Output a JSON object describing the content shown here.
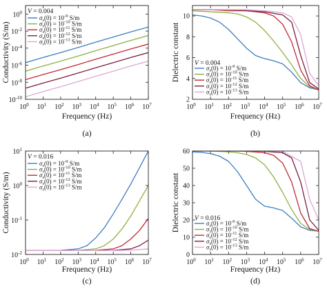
{
  "chart_data": [
    {
      "type": "line",
      "panel_label": "(a)",
      "xlabel": "Frequency (Hz)",
      "ylabel": "Conductivity (S/m)",
      "xscale": "log",
      "yscale": "log",
      "xlim": [
        1,
        10000000
      ],
      "ylim": [
        1e-10,
        10
      ],
      "x_ticks": [
        {
          "value": 1,
          "base": "10",
          "exp": "0"
        },
        {
          "value": 10,
          "base": "10",
          "exp": "1"
        },
        {
          "value": 100,
          "base": "10",
          "exp": "2"
        },
        {
          "value": 1000,
          "base": "10",
          "exp": "3"
        },
        {
          "value": 10000,
          "base": "10",
          "exp": "4"
        },
        {
          "value": 100000,
          "base": "10",
          "exp": "5"
        },
        {
          "value": 1000000,
          "base": "10",
          "exp": "6"
        },
        {
          "value": 10000000,
          "base": "10",
          "exp": "7"
        }
      ],
      "y_ticks": [
        {
          "value": 1e-10,
          "base": "10",
          "exp": "-10"
        },
        {
          "value": 1e-08,
          "base": "10",
          "exp": "-8"
        },
        {
          "value": 1e-06,
          "base": "10",
          "exp": "-6"
        },
        {
          "value": 0.0001,
          "base": "10",
          "exp": "-4"
        },
        {
          "value": 0.01,
          "base": "10",
          "exp": "-2"
        },
        {
          "value": 1,
          "base": "10",
          "exp": "0"
        }
      ],
      "parameter_text": "V = 0.004",
      "legend_position": "top-left",
      "series": [
        {
          "name": "σs(0) = 10⁻⁹ S/m",
          "legend_exp": "-9",
          "color": "#3a7dc0",
          "x": [
            1,
            10,
            100,
            1000,
            10000,
            100000,
            1000000,
            10000000
          ],
          "y": [
            2e-06,
            8e-06,
            3e-05,
            0.00012,
            0.0005,
            0.002,
            0.008,
            0.03
          ]
        },
        {
          "name": "σs(0) = 10⁻¹⁰ S/m",
          "legend_exp": "-10",
          "color": "#8cb040",
          "x": [
            1,
            10,
            100,
            1000,
            10000,
            100000,
            1000000,
            10000000
          ],
          "y": [
            2e-07,
            8e-07,
            3e-06,
            1.2e-05,
            5e-05,
            0.0002,
            0.0008,
            0.003
          ]
        },
        {
          "name": "σs(0) = 10⁻¹¹ S/m",
          "legend_exp": "-11",
          "color": "#c0282e",
          "x": [
            1,
            10,
            100,
            1000,
            10000,
            100000,
            1000000,
            10000000
          ],
          "y": [
            2e-08,
            8e-08,
            3e-07,
            1.2e-06,
            5e-06,
            2e-05,
            8e-05,
            0.0003
          ]
        },
        {
          "name": "σs(0) = 10⁻¹² S/m",
          "legend_exp": "-12",
          "color": "#7a1c3c",
          "x": [
            1,
            10,
            100,
            1000,
            10000,
            100000,
            1000000,
            10000000
          ],
          "y": [
            2e-09,
            8e-09,
            3e-08,
            1.2e-07,
            5e-07,
            2e-06,
            8e-06,
            3e-05
          ]
        },
        {
          "name": "σs(0) = 10⁻¹³ S/m",
          "legend_exp": "-13",
          "color": "#dba8d6",
          "x": [
            1,
            10,
            100,
            1000,
            10000,
            100000,
            1000000,
            10000000
          ],
          "y": [
            2e-10,
            8e-10,
            3e-09,
            1.2e-08,
            5e-08,
            2e-07,
            8e-07,
            3e-06
          ]
        }
      ]
    },
    {
      "type": "line",
      "panel_label": "(b)",
      "xlabel": "Frequency (Hz)",
      "ylabel": "Dielectric constant",
      "xscale": "log",
      "yscale": "linear",
      "xlim": [
        1,
        10000000
      ],
      "ylim": [
        2,
        11
      ],
      "x_ticks": [
        {
          "value": 1,
          "base": "10",
          "exp": "0"
        },
        {
          "value": 10,
          "base": "10",
          "exp": "1"
        },
        {
          "value": 100,
          "base": "10",
          "exp": "2"
        },
        {
          "value": 1000,
          "base": "10",
          "exp": "3"
        },
        {
          "value": 10000,
          "base": "10",
          "exp": "4"
        },
        {
          "value": 100000,
          "base": "10",
          "exp": "5"
        },
        {
          "value": 1000000,
          "base": "10",
          "exp": "6"
        },
        {
          "value": 10000000,
          "base": "10",
          "exp": "7"
        }
      ],
      "y_ticks": [
        {
          "value": 2,
          "label": "2"
        },
        {
          "value": 4,
          "label": "4"
        },
        {
          "value": 6,
          "label": "6"
        },
        {
          "value": 8,
          "label": "8"
        },
        {
          "value": 10,
          "label": "10"
        }
      ],
      "parameter_text": "V = 0.004",
      "legend_position": "bottom-left",
      "series": [
        {
          "name": "σs(0) = 10⁻⁹ S/m",
          "legend_exp": "-9",
          "color": "#3a7dc0",
          "x": [
            1,
            3.16,
            10,
            31.6,
            100,
            316,
            1000,
            3160,
            10000,
            31600,
            100000,
            316000,
            1000000,
            3160000,
            10000000
          ],
          "y": [
            10.1,
            10.0,
            9.8,
            9.4,
            8.7,
            7.8,
            6.9,
            6.2,
            5.9,
            5.7,
            5.4,
            4.6,
            3.6,
            3.1,
            2.9
          ]
        },
        {
          "name": "σs(0) = 10⁻¹⁰ S/m",
          "legend_exp": "-10",
          "color": "#8cb040",
          "x": [
            1,
            10,
            100,
            316,
            1000,
            3160,
            10000,
            31600,
            100000,
            316000,
            1000000,
            3160000,
            10000000
          ],
          "y": [
            10.5,
            10.4,
            10.3,
            10.2,
            9.9,
            9.4,
            8.6,
            7.6,
            6.5,
            5.3,
            4.0,
            3.2,
            2.9
          ]
        },
        {
          "name": "σs(0) = 10⁻¹¹ S/m",
          "legend_exp": "-11",
          "color": "#c0282e",
          "x": [
            1,
            10,
            100,
            1000,
            10000,
            31600,
            100000,
            316000,
            1000000,
            3160000,
            10000000
          ],
          "y": [
            10.6,
            10.6,
            10.5,
            10.5,
            10.3,
            10.0,
            9.2,
            7.5,
            4.8,
            3.3,
            2.9
          ]
        },
        {
          "name": "σs(0) = 10⁻¹² S/m",
          "legend_exp": "-12",
          "color": "#7a1c3c",
          "x": [
            1,
            10,
            100,
            1000,
            10000,
            100000,
            316000,
            1000000,
            3160000,
            10000000
          ],
          "y": [
            10.6,
            10.6,
            10.6,
            10.5,
            10.4,
            10.1,
            9.4,
            6.2,
            3.6,
            3.0
          ]
        },
        {
          "name": "σs(0) = 10⁻¹³ S/m",
          "legend_exp": "-13",
          "color": "#dba8d6",
          "x": [
            1,
            10,
            100,
            1000,
            10000,
            100000,
            316000,
            1000000,
            3160000,
            10000000
          ],
          "y": [
            10.6,
            10.6,
            10.6,
            10.6,
            10.5,
            10.3,
            9.9,
            8.2,
            4.5,
            3.3
          ]
        }
      ]
    },
    {
      "type": "line",
      "panel_label": "(c)",
      "xlabel": "Frequency (Hz)",
      "ylabel": "Conductivity (S/m)",
      "xscale": "log",
      "yscale": "log",
      "xlim": [
        1,
        10000000
      ],
      "ylim": [
        0.01,
        10
      ],
      "x_ticks": [
        {
          "value": 1,
          "base": "10",
          "exp": "0"
        },
        {
          "value": 10,
          "base": "10",
          "exp": "1"
        },
        {
          "value": 100,
          "base": "10",
          "exp": "2"
        },
        {
          "value": 1000,
          "base": "10",
          "exp": "3"
        },
        {
          "value": 10000,
          "base": "10",
          "exp": "4"
        },
        {
          "value": 100000,
          "base": "10",
          "exp": "5"
        },
        {
          "value": 1000000,
          "base": "10",
          "exp": "6"
        },
        {
          "value": 10000000,
          "base": "10",
          "exp": "7"
        }
      ],
      "y_ticks": [
        {
          "value": 0.01,
          "base": "10",
          "exp": "-2"
        },
        {
          "value": 0.1,
          "base": "10",
          "exp": "-1"
        },
        {
          "value": 1,
          "base": "10",
          "exp": "0"
        },
        {
          "value": 10,
          "base": "10",
          "exp": "1"
        }
      ],
      "parameter_text": "V = 0.016",
      "legend_position": "top-left",
      "series": [
        {
          "name": "σs(0) = 10⁻⁹ S/m",
          "legend_exp": "-9",
          "color": "#3a7dc0",
          "x": [
            1,
            10,
            100,
            1000,
            3160,
            10000,
            31600,
            100000,
            316000,
            1000000,
            3160000,
            10000000
          ],
          "y": [
            0.013,
            0.013,
            0.0132,
            0.0145,
            0.018,
            0.03,
            0.06,
            0.15,
            0.4,
            1.1,
            3.3,
            10
          ]
        },
        {
          "name": "σs(0) = 10⁻¹⁰ S/m",
          "legend_exp": "-10",
          "color": "#8cb040",
          "x": [
            1,
            10,
            100,
            1000,
            10000,
            31600,
            100000,
            316000,
            1000000,
            3160000,
            10000000
          ],
          "y": [
            0.013,
            0.013,
            0.013,
            0.0132,
            0.0145,
            0.018,
            0.028,
            0.055,
            0.13,
            0.36,
            1.0
          ]
        },
        {
          "name": "σs(0) = 10⁻¹¹ S/m",
          "legend_exp": "-11",
          "color": "#c0282e",
          "x": [
            1,
            10,
            100,
            1000,
            10000,
            100000,
            316000,
            1000000,
            3160000,
            10000000
          ],
          "y": [
            0.013,
            0.013,
            0.013,
            0.013,
            0.0132,
            0.0145,
            0.018,
            0.028,
            0.05,
            0.11
          ]
        },
        {
          "name": "σs(0) = 10⁻¹² S/m",
          "legend_exp": "-12",
          "color": "#7a1c3c",
          "x": [
            1,
            10,
            100,
            1000,
            10000,
            100000,
            1000000,
            3160000,
            10000000
          ],
          "y": [
            0.013,
            0.013,
            0.013,
            0.013,
            0.013,
            0.0132,
            0.0145,
            0.018,
            0.026
          ]
        },
        {
          "name": "σs(0) = 10⁻¹³ S/m",
          "legend_exp": "-13",
          "color": "#dba8d6",
          "x": [
            1,
            10,
            100,
            1000,
            10000,
            100000,
            1000000,
            10000000
          ],
          "y": [
            0.013,
            0.013,
            0.013,
            0.013,
            0.013,
            0.013,
            0.0133,
            0.0145
          ]
        }
      ]
    },
    {
      "type": "line",
      "panel_label": "(d)",
      "xlabel": "Frequency (Hz)",
      "ylabel": "Dielectric constant",
      "xscale": "log",
      "yscale": "linear",
      "xlim": [
        1,
        10000000
      ],
      "ylim": [
        0,
        60
      ],
      "x_ticks": [
        {
          "value": 1,
          "base": "10",
          "exp": "0"
        },
        {
          "value": 10,
          "base": "10",
          "exp": "1"
        },
        {
          "value": 100,
          "base": "10",
          "exp": "2"
        },
        {
          "value": 1000,
          "base": "10",
          "exp": "3"
        },
        {
          "value": 10000,
          "base": "10",
          "exp": "4"
        },
        {
          "value": 100000,
          "base": "10",
          "exp": "5"
        },
        {
          "value": 1000000,
          "base": "10",
          "exp": "6"
        },
        {
          "value": 10000000,
          "base": "10",
          "exp": "7"
        }
      ],
      "y_ticks": [
        {
          "value": 0,
          "label": "0"
        },
        {
          "value": 10,
          "label": "10"
        },
        {
          "value": 20,
          "label": "20"
        },
        {
          "value": 30,
          "label": "30"
        },
        {
          "value": 40,
          "label": "40"
        },
        {
          "value": 50,
          "label": "50"
        },
        {
          "value": 60,
          "label": "60"
        }
      ],
      "parameter_text": "V = 0.016",
      "legend_position": "bottom-left",
      "series": [
        {
          "name": "σs(0) = 10⁻⁹ S/m",
          "legend_exp": "-9",
          "color": "#3a7dc0",
          "x": [
            1,
            3.16,
            10,
            31.6,
            100,
            316,
            1000,
            3160,
            10000,
            31600,
            100000,
            316000,
            1000000,
            3160000,
            10000000
          ],
          "y": [
            59.5,
            59.2,
            58.5,
            57,
            54,
            48,
            40,
            32,
            28,
            27,
            25.5,
            21,
            16,
            14,
            13.5
          ]
        },
        {
          "name": "σs(0) = 10⁻¹⁰ S/m",
          "legend_exp": "-10",
          "color": "#8cb040",
          "x": [
            1,
            10,
            100,
            316,
            1000,
            3160,
            10000,
            31600,
            100000,
            316000,
            1000000,
            3160000,
            10000000
          ],
          "y": [
            60,
            60,
            59.5,
            59,
            58,
            56,
            52,
            45,
            36,
            26,
            18,
            14.5,
            13.5
          ]
        },
        {
          "name": "σs(0) = 10⁻¹¹ S/m",
          "legend_exp": "-11",
          "color": "#c0282e",
          "x": [
            1,
            10,
            100,
            1000,
            10000,
            31600,
            100000,
            316000,
            1000000,
            3160000,
            10000000
          ],
          "y": [
            60,
            60,
            60,
            59.8,
            59,
            57.5,
            53,
            42,
            24,
            15,
            13.5
          ]
        },
        {
          "name": "σs(0) = 10⁻¹² S/m",
          "legend_exp": "-12",
          "color": "#7a1c3c",
          "x": [
            1,
            10,
            100,
            1000,
            10000,
            100000,
            316000,
            1000000,
            3160000,
            10000000
          ],
          "y": [
            60,
            60,
            60,
            60,
            59.8,
            59,
            56,
            42,
            20,
            14
          ]
        },
        {
          "name": "σs(0) = 10⁻¹³ S/m",
          "legend_exp": "-13",
          "color": "#dba8d6",
          "x": [
            1,
            10,
            100,
            1000,
            10000,
            100000,
            1000000,
            3160000,
            10000000
          ],
          "y": [
            60,
            60,
            60,
            60,
            60,
            59.8,
            54,
            32,
            20
          ]
        }
      ]
    }
  ]
}
